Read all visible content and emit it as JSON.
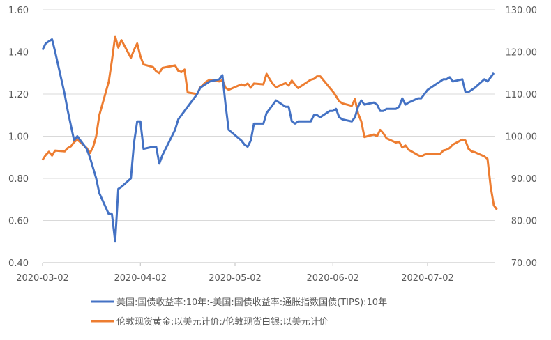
{
  "chart_data": {
    "type": "line",
    "title": "",
    "left_axis": {
      "min": 0.4,
      "max": 1.6,
      "ticks": [
        "0.40",
        "0.60",
        "0.80",
        "1.00",
        "1.20",
        "1.40",
        "1.60"
      ]
    },
    "right_axis": {
      "min": 70,
      "max": 130,
      "ticks": [
        "70.00",
        "80.00",
        "90.00",
        "100.00",
        "110.00",
        "120.00",
        "130.00"
      ]
    },
    "x_axis": {
      "start": "2020-03-02",
      "end": "2020-07-24",
      "tick_labels": [
        "2020-03-02",
        "2020-04-02",
        "2020-05-02",
        "2020-06-02",
        "2020-07-02"
      ]
    },
    "grid": "horizontal",
    "legend_position": "bottom",
    "series": [
      {
        "name": "美国:国债收益率:10年:-美国:国债收益率:通胀指数国债(TIPS):10年",
        "axis": "left",
        "color": "#4472C4",
        "points": [
          [
            "2020-03-02",
            1.41
          ],
          [
            "2020-03-03",
            1.44
          ],
          [
            "2020-03-04",
            1.45
          ],
          [
            "2020-03-05",
            1.46
          ],
          [
            "2020-03-06",
            1.4
          ],
          [
            "2020-03-09",
            1.2
          ],
          [
            "2020-03-10",
            1.12
          ],
          [
            "2020-03-11",
            1.05
          ],
          [
            "2020-03-12",
            0.98
          ],
          [
            "2020-03-13",
            1.0
          ],
          [
            "2020-03-16",
            0.94
          ],
          [
            "2020-03-17",
            0.9
          ],
          [
            "2020-03-18",
            0.85
          ],
          [
            "2020-03-19",
            0.8
          ],
          [
            "2020-03-20",
            0.73
          ],
          [
            "2020-03-23",
            0.63
          ],
          [
            "2020-03-24",
            0.63
          ],
          [
            "2020-03-25",
            0.5
          ],
          [
            "2020-03-26",
            0.75
          ],
          [
            "2020-03-27",
            0.76
          ],
          [
            "2020-03-30",
            0.8
          ],
          [
            "2020-03-31",
            0.97
          ],
          [
            "2020-04-01",
            1.07
          ],
          [
            "2020-04-02",
            1.07
          ],
          [
            "2020-04-03",
            0.94
          ],
          [
            "2020-04-06",
            0.95
          ],
          [
            "2020-04-07",
            0.95
          ],
          [
            "2020-04-08",
            0.87
          ],
          [
            "2020-04-09",
            0.91
          ],
          [
            "2020-04-13",
            1.03
          ],
          [
            "2020-04-14",
            1.08
          ],
          [
            "2020-04-15",
            1.1
          ],
          [
            "2020-04-16",
            1.12
          ],
          [
            "2020-04-17",
            1.14
          ],
          [
            "2020-04-20",
            1.2
          ],
          [
            "2020-04-21",
            1.23
          ],
          [
            "2020-04-22",
            1.24
          ],
          [
            "2020-04-23",
            1.25
          ],
          [
            "2020-04-24",
            1.26
          ],
          [
            "2020-04-27",
            1.27
          ],
          [
            "2020-04-28",
            1.29
          ],
          [
            "2020-04-29",
            1.15
          ],
          [
            "2020-04-30",
            1.03
          ],
          [
            "2020-05-04",
            0.98
          ],
          [
            "2020-05-05",
            0.96
          ],
          [
            "2020-05-06",
            0.95
          ],
          [
            "2020-05-07",
            0.98
          ],
          [
            "2020-05-08",
            1.06
          ],
          [
            "2020-05-11",
            1.06
          ],
          [
            "2020-05-12",
            1.11
          ],
          [
            "2020-05-13",
            1.13
          ],
          [
            "2020-05-14",
            1.15
          ],
          [
            "2020-05-15",
            1.17
          ],
          [
            "2020-05-18",
            1.14
          ],
          [
            "2020-05-19",
            1.14
          ],
          [
            "2020-05-20",
            1.07
          ],
          [
            "2020-05-21",
            1.06
          ],
          [
            "2020-05-22",
            1.07
          ],
          [
            "2020-05-26",
            1.07
          ],
          [
            "2020-05-27",
            1.1
          ],
          [
            "2020-05-28",
            1.1
          ],
          [
            "2020-05-29",
            1.09
          ],
          [
            "2020-06-01",
            1.12
          ],
          [
            "2020-06-02",
            1.12
          ],
          [
            "2020-06-03",
            1.13
          ],
          [
            "2020-06-04",
            1.09
          ],
          [
            "2020-06-05",
            1.08
          ],
          [
            "2020-06-08",
            1.07
          ],
          [
            "2020-06-09",
            1.09
          ],
          [
            "2020-06-10",
            1.14
          ],
          [
            "2020-06-11",
            1.17
          ],
          [
            "2020-06-12",
            1.15
          ],
          [
            "2020-06-15",
            1.16
          ],
          [
            "2020-06-16",
            1.15
          ],
          [
            "2020-06-17",
            1.12
          ],
          [
            "2020-06-18",
            1.12
          ],
          [
            "2020-06-19",
            1.13
          ],
          [
            "2020-06-22",
            1.13
          ],
          [
            "2020-06-23",
            1.14
          ],
          [
            "2020-06-24",
            1.18
          ],
          [
            "2020-06-25",
            1.15
          ],
          [
            "2020-06-26",
            1.16
          ],
          [
            "2020-06-29",
            1.18
          ],
          [
            "2020-06-30",
            1.18
          ],
          [
            "2020-07-01",
            1.2
          ],
          [
            "2020-07-02",
            1.22
          ],
          [
            "2020-07-06",
            1.26
          ],
          [
            "2020-07-07",
            1.27
          ],
          [
            "2020-07-08",
            1.27
          ],
          [
            "2020-07-09",
            1.28
          ],
          [
            "2020-07-10",
            1.26
          ],
          [
            "2020-07-13",
            1.27
          ],
          [
            "2020-07-14",
            1.21
          ],
          [
            "2020-07-15",
            1.21
          ],
          [
            "2020-07-16",
            1.22
          ],
          [
            "2020-07-17",
            1.23
          ],
          [
            "2020-07-20",
            1.27
          ],
          [
            "2020-07-21",
            1.26
          ],
          [
            "2020-07-22",
            1.28
          ],
          [
            "2020-07-23",
            1.3
          ]
        ]
      },
      {
        "name": "伦敦现货黄金:以美元计价:/伦敦现货白银:以美元计价",
        "axis": "right",
        "color": "#ED7D31",
        "points": []
      }
    ]
  }
}
